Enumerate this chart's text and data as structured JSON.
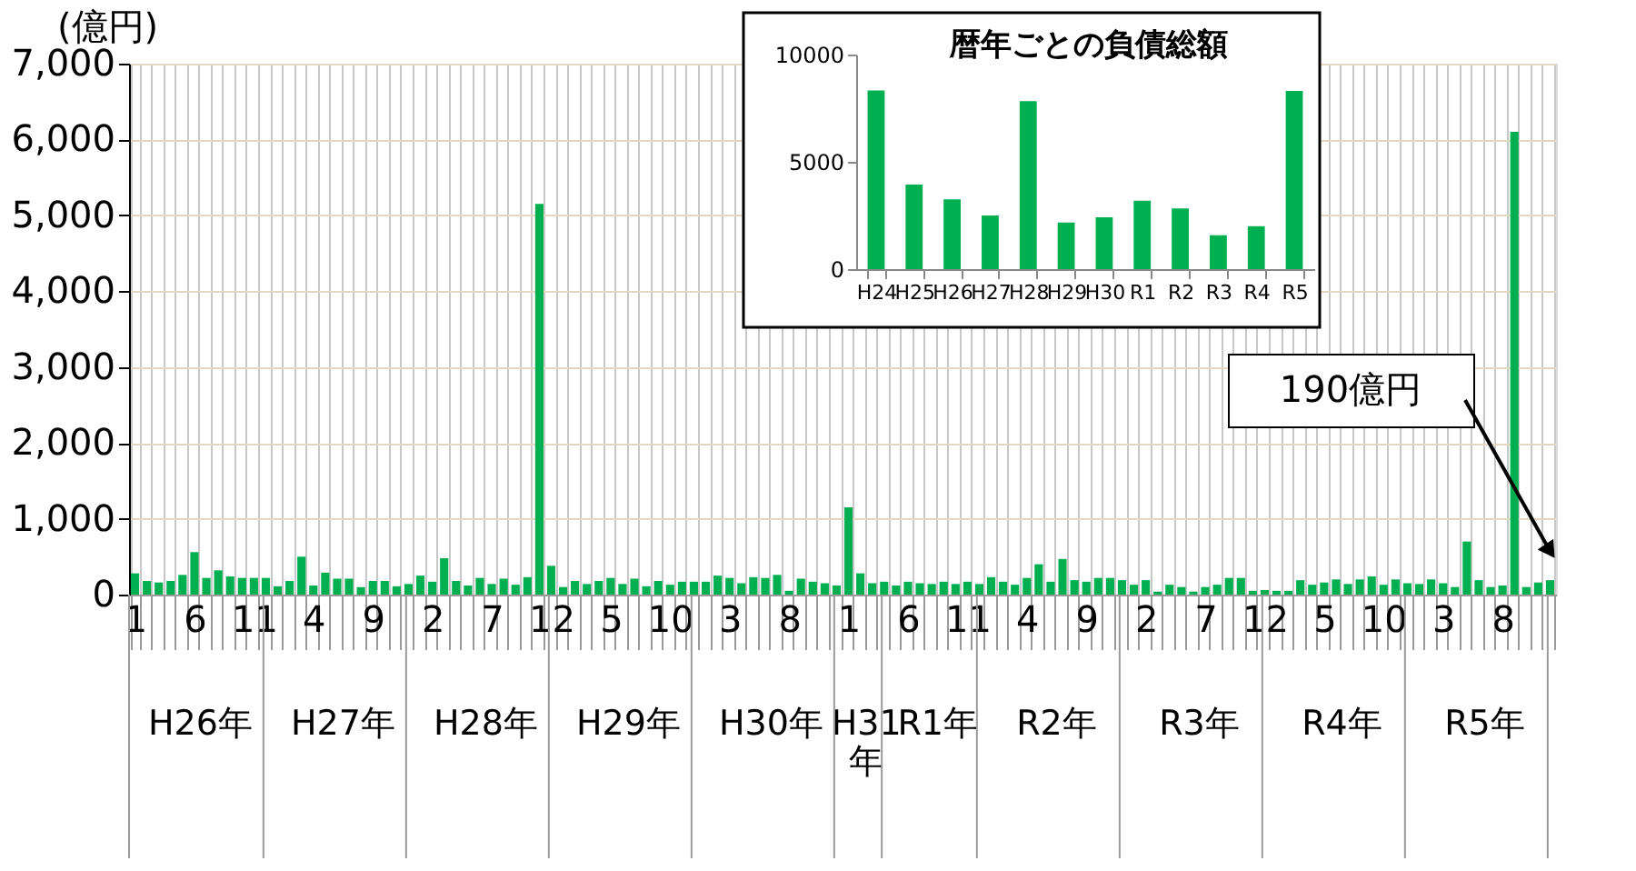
{
  "chart_data": [
    {
      "type": "bar",
      "ylabel": "(億円)",
      "color": "#00b050",
      "categories": [
        "1",
        null,
        null,
        null,
        null,
        "6",
        null,
        null,
        null,
        null,
        "11",
        null,
        null,
        null,
        null,
        "4",
        null,
        null,
        null,
        null,
        "9",
        null,
        null,
        null,
        null,
        "2",
        null,
        null,
        null,
        null,
        "7",
        null,
        null,
        null,
        null,
        "12",
        null,
        null,
        null,
        null,
        "5",
        null,
        null,
        null,
        null,
        "10",
        null,
        null,
        null,
        null,
        "3",
        null,
        null,
        null,
        null,
        "8",
        null,
        null,
        null,
        null,
        "1",
        null,
        null,
        null,
        null,
        "6",
        null,
        null,
        null,
        null,
        "11",
        null,
        null,
        null,
        null,
        "4",
        null,
        null,
        null,
        null,
        "9",
        null,
        null,
        null,
        null,
        "2",
        null,
        null,
        null,
        null,
        "7",
        null,
        null,
        null,
        null,
        "12",
        null,
        null,
        null,
        null,
        "5",
        null,
        null,
        null,
        null,
        "10",
        null,
        null,
        null,
        null,
        "3",
        null,
        null,
        null,
        null,
        "8",
        null,
        null,
        null,
        null
      ],
      "values": [
        280,
        180,
        160,
        180,
        260,
        560,
        220,
        320,
        240,
        220,
        220,
        220,
        110,
        180,
        500,
        120,
        290,
        210,
        210,
        100,
        180,
        180,
        110,
        140,
        250,
        170,
        480,
        180,
        120,
        220,
        140,
        210,
        130,
        230,
        5150,
        380,
        100,
        180,
        140,
        180,
        220,
        140,
        210,
        110,
        180,
        130,
        170,
        170,
        170,
        250,
        220,
        150,
        230,
        220,
        260,
        50,
        210,
        170,
        150,
        120,
        1150,
        280,
        150,
        170,
        120,
        170,
        150,
        140,
        170,
        140,
        170,
        140,
        230,
        170,
        130,
        220,
        400,
        170,
        470,
        190,
        170,
        220,
        220,
        190,
        130,
        190,
        40,
        130,
        100,
        40,
        100,
        130,
        220,
        220,
        50,
        60,
        50,
        50,
        190,
        130,
        160,
        200,
        140,
        200,
        240,
        130,
        200,
        150,
        140,
        200,
        150,
        100,
        700,
        190,
        100,
        120,
        6100,
        100,
        160,
        190
      ],
      "ylim": [
        0,
        7000
      ],
      "yticks": [
        0,
        {
          "value": 1000,
          "label": "1,000"
        },
        {
          "value": 2000,
          "label": "2,000"
        },
        {
          "value": 3000,
          "label": "3,000"
        },
        {
          "value": 4000,
          "label": "4,000"
        },
        {
          "value": 5000,
          "label": "5,000"
        },
        {
          "value": 6000,
          "label": "6,000"
        },
        {
          "value": 7000,
          "label": "7,000"
        }
      ],
      "grid": true,
      "annotations": [
        "H26年",
        "H27年",
        "H28年",
        "H29年",
        "H30年",
        "H31年",
        "R1年",
        "R2年",
        "R3年",
        "R4年",
        "R5年",
        "190億円"
      ]
    },
    {
      "type": "bar",
      "title": "暦年ごとの負債総額",
      "color": "#00b050",
      "categories": [
        "H24",
        "H25",
        "H26",
        "H27",
        "H28",
        "H29",
        "H30",
        "R1",
        "R2",
        "R3",
        "R4",
        "R5"
      ],
      "values": [
        8330,
        3940,
        3250,
        2500,
        7830,
        2170,
        2420,
        3190,
        2830,
        1580,
        2000,
        8300
      ],
      "ylim": [
        0,
        10000
      ],
      "yticks": [
        0,
        5000,
        10000
      ]
    }
  ]
}
